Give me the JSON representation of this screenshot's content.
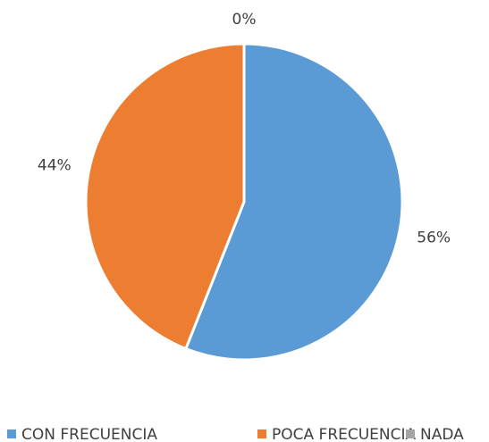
{
  "chart_data": {
    "type": "pie",
    "categories": [
      "CON FRECUENCIA",
      "POCA FRECUENCIA",
      "NADA"
    ],
    "values": [
      56,
      44,
      0
    ],
    "value_labels": [
      "56%",
      "44%",
      "0%"
    ],
    "colors": [
      "#5b9bd5",
      "#ed7d31",
      "#a5a5a5"
    ],
    "legend": "bottom"
  }
}
